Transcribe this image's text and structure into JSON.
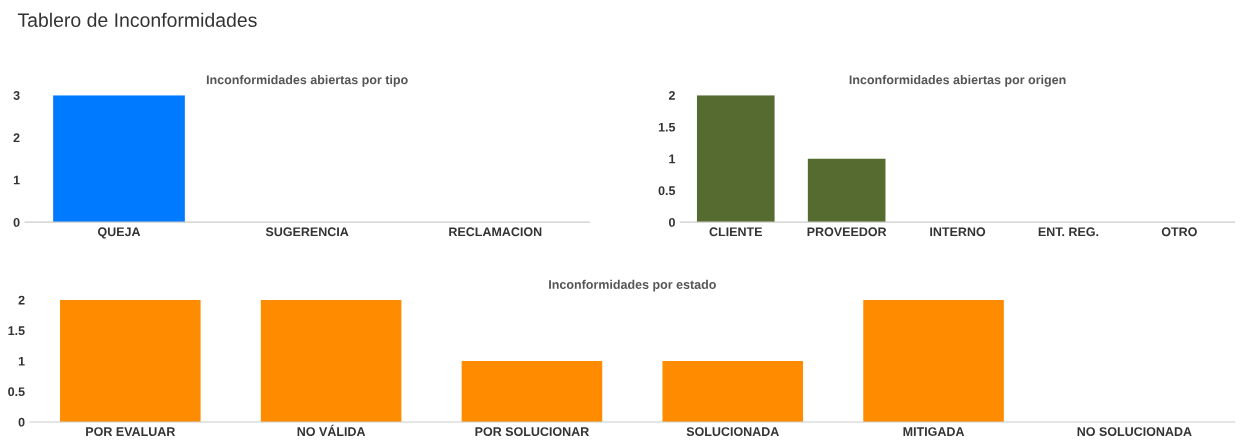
{
  "chart_data": [
    {
      "type": "bar",
      "title": "Inconformidades abiertas por tipo",
      "annotations": [
        "Tablero de Inconformidades"
      ],
      "categories": [
        "QUEJA",
        "SUGERENCIA",
        "RECLAMACION"
      ],
      "values": [
        3,
        0,
        0
      ],
      "color": "#007bff",
      "ylim": [
        0,
        3
      ],
      "yticks": [
        0,
        1,
        2,
        3
      ],
      "grid": false
    },
    {
      "type": "bar",
      "title": "Inconformidades abiertas por origen",
      "categories": [
        "CLIENTE",
        "PROVEEDOR",
        "INTERNO",
        "ENT. REG.",
        "OTRO"
      ],
      "values": [
        2,
        1,
        0,
        0,
        0
      ],
      "color": "#556b2f",
      "ylim": [
        0,
        2
      ],
      "yticks": [
        0,
        0.5,
        1,
        1.5,
        2
      ],
      "grid": false
    },
    {
      "type": "bar",
      "title": "Inconformidades por estado",
      "categories": [
        "POR EVALUAR",
        "NO VÁLIDA",
        "POR SOLUCIONAR",
        "SOLUCIONADA",
        "MITIGADA",
        "NO SOLUCIONADA"
      ],
      "values": [
        2,
        2,
        1,
        1,
        2,
        0
      ],
      "color": "#ff8c00",
      "ylim": [
        0,
        2
      ],
      "yticks": [
        0,
        0.5,
        1,
        1.5,
        2
      ],
      "grid": false
    }
  ]
}
